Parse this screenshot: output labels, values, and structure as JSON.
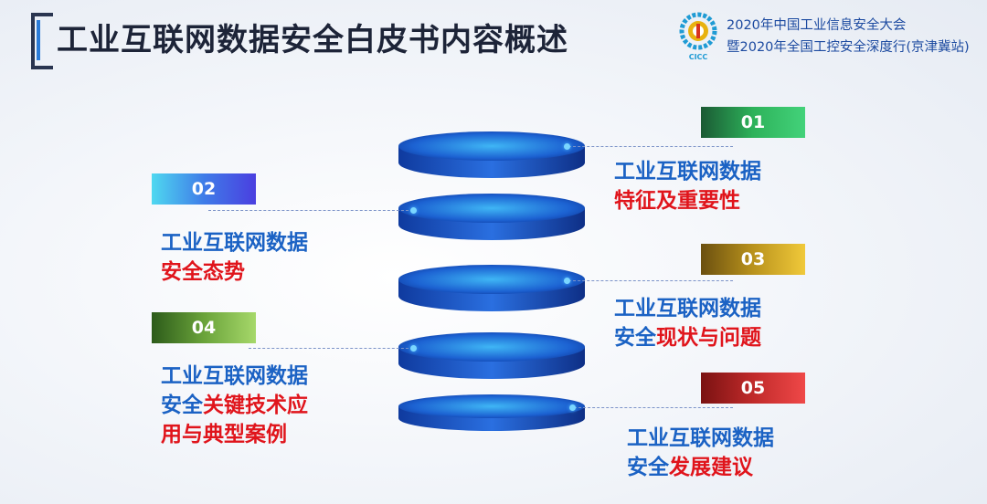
{
  "header": {
    "title": "工业互联网数据安全白皮书内容概述",
    "conference_line1": "2020年中国工业信息安全大会",
    "conference_line2": "暨2020年全国工控安全深度行(京津冀站)",
    "logo_text": "CICC"
  },
  "items": [
    {
      "num": "01",
      "line1": "工业互联网数据",
      "line2_blue": "",
      "line2_red": "特征及重要性",
      "color": "#2db25a"
    },
    {
      "num": "02",
      "line1": "工业互联网数据",
      "line2_blue": "",
      "line2_red": "安全态势",
      "color": "#3f7ce8"
    },
    {
      "num": "03",
      "line1": "工业互联网数据",
      "line2_blue": "安全",
      "line2_red": "现状与问题",
      "color": "#d8ae2a"
    },
    {
      "num": "04",
      "line1": "工业互联网数据",
      "line2_blue": "安全",
      "line2_red": "关键技术应",
      "line3_red": "用与典型案例",
      "color": "#6aa33a"
    },
    {
      "num": "05",
      "line1": "工业互联网数据",
      "line2_blue": "安全",
      "line2_red": "发展建议",
      "color": "#d02f2f"
    }
  ],
  "colors": {
    "title": "#1d2438",
    "accent_blue": "#1b62c4",
    "accent_red": "#e0141b",
    "disk": "#1a4fb8"
  }
}
